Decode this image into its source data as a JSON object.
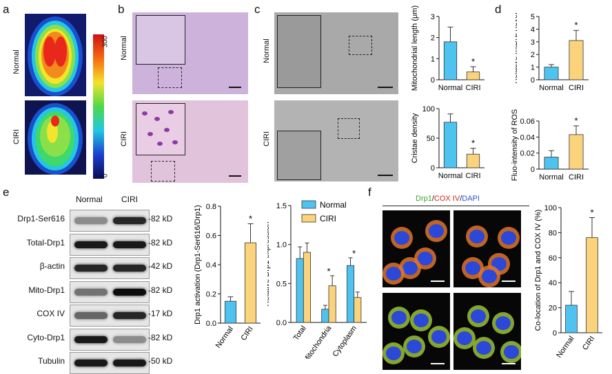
{
  "panels": {
    "a": "a",
    "b": "b",
    "c": "c",
    "d": "d",
    "e": "e",
    "f": "f"
  },
  "conditions": {
    "normal": "Normal",
    "ciri": "CIRI"
  },
  "colorbar": {
    "max": "300",
    "min": "0"
  },
  "colors": {
    "normal": "#4fc3ef",
    "ciri": "#fad37c",
    "he": "#c79ad6",
    "tem": "#8f8f8f"
  },
  "wb": {
    "col_labels": [
      "Normal",
      "CIRI"
    ],
    "rows": [
      {
        "name": "Drp1-Ser616",
        "kd": "82 kD"
      },
      {
        "name": "Total-Drp1",
        "kd": "82 kD"
      },
      {
        "name": "β-actin",
        "kd": "42 kD"
      },
      {
        "name": "Mito-Drp1",
        "kd": "82 kD"
      },
      {
        "name": "COX IV",
        "kd": "17 kD"
      },
      {
        "name": "Cyto-Drp1",
        "kd": "82 kD"
      },
      {
        "name": "Tubulin",
        "kd": "50 kD"
      }
    ]
  },
  "stain_legend": {
    "drp1": "Drp1",
    "sep1": "/",
    "cox": "COX IV",
    "sep2": "/",
    "dapi": "DAPI"
  },
  "chart_data": [
    {
      "id": "c1",
      "type": "bar",
      "categories": [
        "Normal",
        "CIRI"
      ],
      "values": [
        1.8,
        0.37
      ],
      "errors": [
        0.7,
        0.25
      ],
      "sig": [
        "",
        "*"
      ],
      "ylabel": "Mitochondrial length (μm)",
      "ylim": [
        0,
        3
      ],
      "yticks": [
        "0",
        "1",
        "2",
        "3"
      ]
    },
    {
      "id": "c2",
      "type": "bar",
      "categories": [
        "Normal",
        "CIRI"
      ],
      "values": [
        77,
        23
      ],
      "errors": [
        14,
        10
      ],
      "sig": [
        "",
        "*"
      ],
      "ylabel": "Cristae density",
      "ylim": [
        0,
        100
      ],
      "yticks": [
        "0",
        "50",
        "100"
      ]
    },
    {
      "id": "d1",
      "type": "bar",
      "categories": [
        "Normal",
        "CIRI"
      ],
      "values": [
        1.0,
        3.1
      ],
      "errors": [
        0.2,
        0.8
      ],
      "sig": [
        "",
        "*"
      ],
      "ylabel": "Relative mtDNA level",
      "ylim": [
        0,
        5
      ],
      "yticks": [
        "0",
        "1",
        "2",
        "3",
        "4",
        "5"
      ]
    },
    {
      "id": "d2",
      "type": "bar",
      "categories": [
        "Normal",
        "CIRI"
      ],
      "values": [
        0.015,
        0.043
      ],
      "errors": [
        0.008,
        0.011
      ],
      "sig": [
        "",
        "*"
      ],
      "ylabel": "Fluo-intensity of ROS",
      "ylim": [
        0,
        0.06
      ],
      "yticks": [
        "0",
        "0.02",
        "0.04",
        "0.06"
      ]
    },
    {
      "id": "e1",
      "type": "bar",
      "categories": [
        "Normal",
        "CIRI"
      ],
      "values": [
        0.15,
        0.55
      ],
      "errors": [
        0.03,
        0.13
      ],
      "sig": [
        "",
        "*"
      ],
      "ylabel": "Drp1 activation (Drp1-Ser616/Drp1)",
      "ylim": [
        0,
        0.8
      ],
      "yticks": [
        "0.0",
        "0.2",
        "0.4",
        "0.6",
        "0.8"
      ]
    },
    {
      "id": "e2",
      "type": "bar",
      "categories": [
        "Total",
        "Mitochondria",
        "Cytoplasm"
      ],
      "series": [
        {
          "name": "Normal",
          "values": [
            0.82,
            0.17,
            0.73
          ],
          "errors": [
            0.15,
            0.05,
            0.1
          ]
        },
        {
          "name": "CIRI",
          "values": [
            0.9,
            0.47,
            0.32
          ],
          "errors": [
            0.12,
            0.13,
            0.07
          ]
        }
      ],
      "sig": [
        "",
        "*",
        "*"
      ],
      "ylabel": "Relative Drp1 expression",
      "ylim": [
        0,
        1.5
      ],
      "yticks": [
        "0.0",
        "0.5",
        "1.0",
        "1.5"
      ],
      "legend": "top-right"
    },
    {
      "id": "f1",
      "type": "bar",
      "categories": [
        "Normal",
        "CIRI"
      ],
      "values": [
        22,
        76
      ],
      "errors": [
        11,
        16
      ],
      "sig": [
        "",
        "*"
      ],
      "ylabel": "Co-location of Drp1 and COX IV (%)",
      "ylim": [
        0,
        100
      ],
      "yticks": [
        "0",
        "20",
        "40",
        "60",
        "80",
        "100"
      ]
    }
  ]
}
